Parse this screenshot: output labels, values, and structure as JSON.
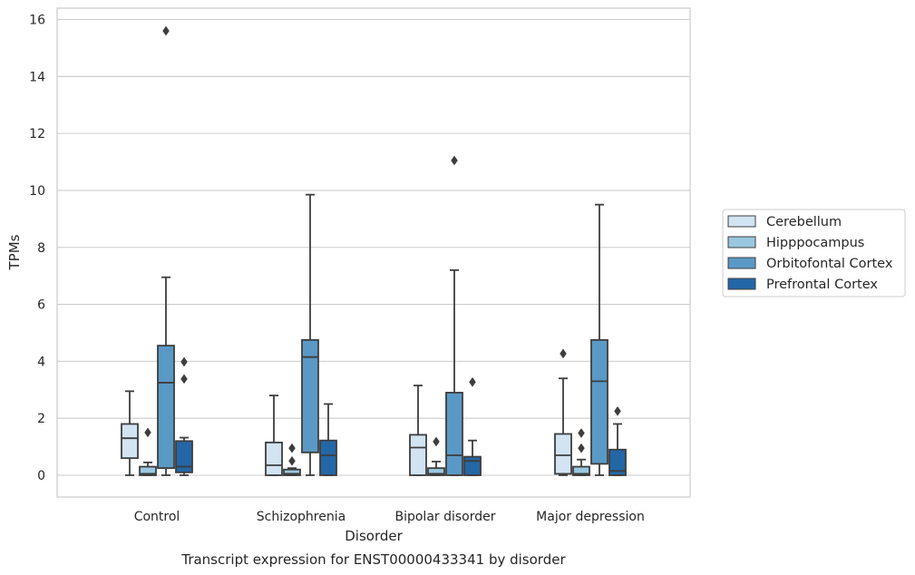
{
  "caption": "Transcript expression for ENST00000433341 by disorder",
  "chart_data": {
    "type": "box",
    "xlabel": "Disorder",
    "ylabel": "TPMs",
    "ylim": [
      -0.75,
      16.4
    ],
    "yticks": [
      0,
      2,
      4,
      6,
      8,
      10,
      12,
      14,
      16
    ],
    "grid": "horizontal",
    "legend_position": "right",
    "categories": [
      "Control",
      "Schizophrenia",
      "Bipolar disorder",
      "Major depression"
    ],
    "series": [
      {
        "name": "Cerebellum",
        "color": "#d2e3f2",
        "boxes": [
          {
            "whislo": 0.0,
            "q1": 0.6,
            "med": 1.3,
            "q3": 1.8,
            "whishi": 2.95,
            "fliers": []
          },
          {
            "whislo": 0.0,
            "q1": 0.0,
            "med": 0.35,
            "q3": 1.15,
            "whishi": 2.8,
            "fliers": []
          },
          {
            "whislo": 0.0,
            "q1": 0.0,
            "med": 0.97,
            "q3": 1.42,
            "whishi": 3.15,
            "fliers": []
          },
          {
            "whislo": 0.0,
            "q1": 0.05,
            "med": 0.7,
            "q3": 1.45,
            "whishi": 3.4,
            "fliers": [
              4.27
            ]
          }
        ]
      },
      {
        "name": "Hipppocampus",
        "color": "#9ac7e0",
        "boxes": [
          {
            "whislo": 0.0,
            "q1": 0.0,
            "med": 0.05,
            "q3": 0.3,
            "whishi": 0.45,
            "fliers": [
              1.5
            ]
          },
          {
            "whislo": 0.0,
            "q1": 0.0,
            "med": 0.05,
            "q3": 0.2,
            "whishi": 0.25,
            "fliers": [
              0.5,
              0.95
            ]
          },
          {
            "whislo": 0.0,
            "q1": 0.0,
            "med": 0.05,
            "q3": 0.25,
            "whishi": 0.48,
            "fliers": [
              1.18
            ]
          },
          {
            "whislo": 0.0,
            "q1": 0.0,
            "med": 0.05,
            "q3": 0.3,
            "whishi": 0.55,
            "fliers": [
              0.95,
              1.48
            ]
          }
        ]
      },
      {
        "name": "Orbitofontal Cortex",
        "color": "#5a99c5",
        "boxes": [
          {
            "whislo": 0.0,
            "q1": 0.25,
            "med": 3.25,
            "q3": 4.55,
            "whishi": 6.95,
            "fliers": [
              15.6
            ]
          },
          {
            "whislo": 0.0,
            "q1": 0.8,
            "med": 4.15,
            "q3": 4.75,
            "whishi": 9.85,
            "fliers": []
          },
          {
            "whislo": 0.0,
            "q1": 0.0,
            "med": 0.7,
            "q3": 2.9,
            "whishi": 7.2,
            "fliers": [
              11.05
            ]
          },
          {
            "whislo": 0.0,
            "q1": 0.4,
            "med": 3.3,
            "q3": 4.75,
            "whishi": 9.5,
            "fliers": []
          }
        ]
      },
      {
        "name": "Prefrontal Cortex",
        "color": "#2467a6",
        "boxes": [
          {
            "whislo": 0.0,
            "q1": 0.1,
            "med": 0.3,
            "q3": 1.2,
            "whishi": 1.32,
            "fliers": [
              3.38,
              3.98
            ]
          },
          {
            "whislo": 0.0,
            "q1": 0.0,
            "med": 0.7,
            "q3": 1.22,
            "whishi": 2.5,
            "fliers": []
          },
          {
            "whislo": 0.0,
            "q1": 0.0,
            "med": 0.5,
            "q3": 0.65,
            "whishi": 1.22,
            "fliers": [
              3.27
            ]
          },
          {
            "whislo": 0.0,
            "q1": 0.0,
            "med": 0.15,
            "q3": 0.9,
            "whishi": 1.8,
            "fliers": [
              2.25
            ]
          }
        ]
      }
    ]
  }
}
